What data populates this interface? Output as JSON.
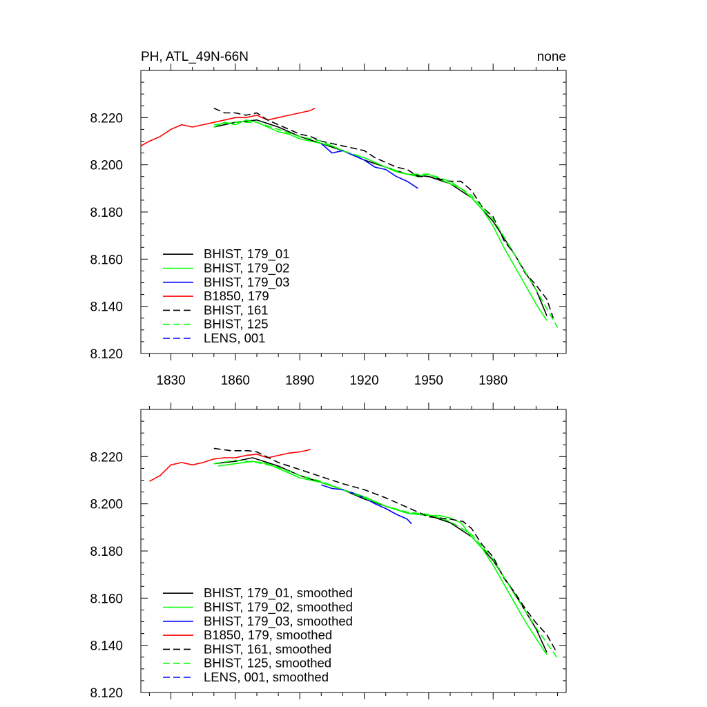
{
  "chart_data": [
    {
      "type": "line",
      "title_left": "PH, ATL_49N-66N",
      "title_right": "none",
      "xlim": [
        1816,
        2014
      ],
      "ylim": [
        8.12,
        8.24
      ],
      "x_ticks": [
        1830,
        1860,
        1890,
        1920,
        1950,
        1980
      ],
      "y_ticks": [
        "8.120",
        "8.140",
        "8.160",
        "8.180",
        "8.200",
        "8.220"
      ],
      "x_tick_labels_shown": true,
      "legend_position": "bottom-left",
      "series": [
        {
          "name": "BHIST, 179_01",
          "color": "#000000",
          "dash": "solid",
          "x": [
            1850,
            1860,
            1870,
            1880,
            1890,
            1900,
            1910,
            1920,
            1930,
            1940,
            1950,
            1960,
            1970,
            1980,
            1990,
            2000,
            2005
          ],
          "y": [
            8.216,
            8.218,
            8.219,
            8.216,
            8.212,
            8.209,
            8.206,
            8.202,
            8.199,
            8.196,
            8.195,
            8.192,
            8.186,
            8.176,
            8.162,
            8.147,
            8.136
          ]
        },
        {
          "name": "BHIST, 179_02",
          "color": "#00ff00",
          "dash": "solid",
          "x": [
            1850,
            1855,
            1860,
            1865,
            1870,
            1875,
            1880,
            1885,
            1890,
            1895,
            1900,
            1905,
            1910,
            1915,
            1920,
            1925,
            1930,
            1935,
            1940,
            1945,
            1950,
            1955,
            1960,
            1965,
            1970,
            1975,
            1980,
            1985,
            1990,
            1995,
            2000,
            2005
          ],
          "y": [
            8.216,
            8.218,
            8.217,
            8.219,
            8.218,
            8.216,
            8.214,
            8.213,
            8.211,
            8.21,
            8.209,
            8.208,
            8.206,
            8.204,
            8.203,
            8.201,
            8.199,
            8.197,
            8.196,
            8.195,
            8.196,
            8.194,
            8.192,
            8.19,
            8.186,
            8.181,
            8.174,
            8.165,
            8.157,
            8.149,
            8.141,
            8.134
          ]
        },
        {
          "name": "BHIST, 179_03",
          "color": "#0000ff",
          "dash": "solid",
          "x": [
            1900,
            1905,
            1910,
            1915,
            1920,
            1925,
            1930,
            1935,
            1940,
            1945
          ],
          "y": [
            8.209,
            8.205,
            8.206,
            8.204,
            8.202,
            8.199,
            8.198,
            8.195,
            8.193,
            8.19
          ]
        },
        {
          "name": "B1850, 179",
          "color": "#ff0000",
          "dash": "solid",
          "x": [
            1816,
            1820,
            1825,
            1830,
            1835,
            1840,
            1845,
            1850,
            1855,
            1860,
            1865,
            1870,
            1875,
            1880,
            1885,
            1890,
            1895,
            1897
          ],
          "y": [
            8.208,
            8.21,
            8.212,
            8.215,
            8.217,
            8.216,
            8.217,
            8.218,
            8.219,
            8.22,
            8.22,
            8.221,
            8.219,
            8.22,
            8.221,
            8.222,
            8.223,
            8.224
          ]
        },
        {
          "name": "BHIST, 161",
          "color": "#000000",
          "dash": "dashed",
          "x": [
            1850,
            1855,
            1860,
            1865,
            1870,
            1875,
            1880,
            1885,
            1890,
            1895,
            1900,
            1905,
            1910,
            1915,
            1920,
            1925,
            1930,
            1935,
            1940,
            1945,
            1950,
            1955,
            1960,
            1965,
            1970,
            1975,
            1980,
            1985,
            1990,
            1995,
            2000,
            2005,
            2008
          ],
          "y": [
            8.224,
            8.222,
            8.222,
            8.221,
            8.222,
            8.219,
            8.217,
            8.215,
            8.213,
            8.212,
            8.21,
            8.209,
            8.208,
            8.207,
            8.206,
            8.203,
            8.201,
            8.199,
            8.198,
            8.195,
            8.195,
            8.194,
            8.193,
            8.193,
            8.189,
            8.182,
            8.178,
            8.168,
            8.162,
            8.154,
            8.149,
            8.143,
            8.135
          ]
        },
        {
          "name": "BHIST, 125",
          "color": "#00ff00",
          "dash": "dashed",
          "x": [
            1850,
            1860,
            1870,
            1880,
            1890,
            1900,
            1910,
            1920,
            1930,
            1940,
            1950,
            1960,
            1970,
            1980,
            1990,
            2000,
            2010
          ],
          "y": [
            8.217,
            8.218,
            8.218,
            8.215,
            8.212,
            8.21,
            8.206,
            8.203,
            8.199,
            8.196,
            8.196,
            8.193,
            8.187,
            8.177,
            8.162,
            8.147,
            8.131
          ]
        },
        {
          "name": "LENS, 001",
          "color": "#0000ff",
          "dash": "dashed",
          "x": [],
          "y": []
        }
      ]
    },
    {
      "type": "line",
      "xlim": [
        1816,
        2014
      ],
      "ylim": [
        8.12,
        8.24
      ],
      "x_ticks": [
        1830,
        1860,
        1890,
        1920,
        1950,
        1980
      ],
      "y_ticks": [
        "8.120",
        "8.140",
        "8.160",
        "8.180",
        "8.200",
        "8.220"
      ],
      "x_tick_labels_shown": false,
      "legend_position": "bottom-left",
      "series": [
        {
          "name": "BHIST, 179_01, smoothed",
          "color": "#000000",
          "dash": "solid",
          "x": [
            1850,
            1860,
            1868,
            1880,
            1890,
            1900,
            1910,
            1920,
            1930,
            1940,
            1950,
            1960,
            1970,
            1980,
            1990,
            2000,
            2005
          ],
          "y": [
            8.217,
            8.218,
            8.2195,
            8.216,
            8.212,
            8.209,
            8.206,
            8.202,
            8.199,
            8.196,
            8.195,
            8.192,
            8.186,
            8.176,
            8.162,
            8.147,
            8.137
          ]
        },
        {
          "name": "BHIST, 179_02, smoothed",
          "color": "#00ff00",
          "dash": "solid",
          "x": [
            1852,
            1860,
            1868,
            1875,
            1880,
            1890,
            1900,
            1910,
            1920,
            1930,
            1940,
            1950,
            1955,
            1960,
            1965,
            1970,
            1975,
            1980,
            1985,
            1990,
            1995,
            2000,
            2005
          ],
          "y": [
            8.216,
            8.217,
            8.218,
            8.217,
            8.215,
            8.211,
            8.209,
            8.206,
            8.203,
            8.199,
            8.196,
            8.195,
            8.195,
            8.194,
            8.192,
            8.186,
            8.181,
            8.174,
            8.166,
            8.158,
            8.15,
            8.143,
            8.136
          ]
        },
        {
          "name": "BHIST, 179_03, smoothed",
          "color": "#0000ff",
          "dash": "solid",
          "x": [
            1900,
            1905,
            1910,
            1915,
            1920,
            1925,
            1930,
            1935,
            1940,
            1942
          ],
          "y": [
            8.208,
            8.2065,
            8.206,
            8.2045,
            8.2025,
            8.2,
            8.198,
            8.1955,
            8.1935,
            8.1915
          ]
        },
        {
          "name": "B1850, 179, smoothed",
          "color": "#ff0000",
          "dash": "solid",
          "x": [
            1820,
            1825,
            1830,
            1835,
            1840,
            1845,
            1850,
            1855,
            1860,
            1865,
            1870,
            1875,
            1880,
            1885,
            1890,
            1895
          ],
          "y": [
            8.2095,
            8.212,
            8.2165,
            8.2175,
            8.2165,
            8.2175,
            8.219,
            8.2195,
            8.2195,
            8.2205,
            8.221,
            8.2195,
            8.2205,
            8.2215,
            8.222,
            8.223
          ]
        },
        {
          "name": "BHIST, 161, smoothed",
          "color": "#000000",
          "dash": "dashed",
          "x": [
            1850,
            1858,
            1866,
            1870,
            1880,
            1890,
            1900,
            1910,
            1920,
            1930,
            1940,
            1950,
            1960,
            1966,
            1970,
            1975,
            1980,
            1985,
            1990,
            1995,
            2000,
            2005,
            2009
          ],
          "y": [
            8.2235,
            8.2225,
            8.2225,
            8.222,
            8.2175,
            8.2145,
            8.2115,
            8.2085,
            8.206,
            8.2025,
            8.1985,
            8.1945,
            8.1935,
            8.1925,
            8.1895,
            8.1825,
            8.1775,
            8.1685,
            8.1625,
            8.1555,
            8.1495,
            8.1445,
            8.138
          ]
        },
        {
          "name": "BHIST, 125, smoothed",
          "color": "#00ff00",
          "dash": "dashed",
          "x": [
            1850,
            1860,
            1870,
            1880,
            1890,
            1900,
            1910,
            1920,
            1930,
            1940,
            1950,
            1960,
            1970,
            1980,
            1990,
            2000,
            2010
          ],
          "y": [
            8.217,
            8.2185,
            8.2175,
            8.2155,
            8.212,
            8.2095,
            8.206,
            8.2025,
            8.199,
            8.1965,
            8.1955,
            8.1925,
            8.187,
            8.1765,
            8.1615,
            8.1475,
            8.1345
          ]
        },
        {
          "name": "LENS, 001, smoothed",
          "color": "#0000ff",
          "dash": "dashed",
          "x": [],
          "y": []
        }
      ]
    }
  ]
}
